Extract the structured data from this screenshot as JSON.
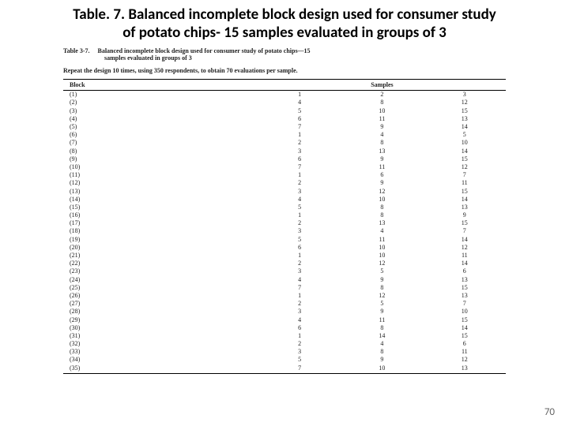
{
  "slide": {
    "title_line1": "Table. 7. Balanced incomplete block design used for consumer study",
    "title_line2": "of potato chips- 15 samples evaluated in groups of 3",
    "title_fontsize": 19,
    "title_color": "#000000",
    "page_number": "70"
  },
  "scan": {
    "caption_lead": "Table 3-7.",
    "caption_rest": "Balanced incomplete block design used for consumer study of potato chips—15",
    "caption_line2": "samples evaluated in groups of 3",
    "repeat_note": "Repeat the design 10 times, using 350 respondents, to obtain 70 evaluations per sample.",
    "header_block": "Block",
    "header_samples": "Samples"
  },
  "table": {
    "type": "table",
    "background_color": "#ffffff",
    "rule_color": "#000000",
    "font_family": "Times New Roman",
    "font_size_pt": 6,
    "columns": [
      "Block",
      "s1",
      "s2",
      "s3"
    ],
    "rows": [
      [
        "(1)",
        1,
        2,
        3
      ],
      [
        "(2)",
        4,
        8,
        12
      ],
      [
        "(3)",
        5,
        10,
        15
      ],
      [
        "(4)",
        6,
        11,
        13
      ],
      [
        "(5)",
        7,
        9,
        14
      ],
      [
        "(6)",
        1,
        4,
        5
      ],
      [
        "(7)",
        2,
        8,
        10
      ],
      [
        "(8)",
        3,
        13,
        14
      ],
      [
        "(9)",
        6,
        9,
        15
      ],
      [
        "(10)",
        7,
        11,
        12
      ],
      [
        "(11)",
        1,
        6,
        7
      ],
      [
        "(12)",
        2,
        9,
        11
      ],
      [
        "(13)",
        3,
        12,
        15
      ],
      [
        "(14)",
        4,
        10,
        14
      ],
      [
        "(15)",
        5,
        8,
        13
      ],
      [
        "(16)",
        1,
        8,
        9
      ],
      [
        "(17)",
        2,
        13,
        15
      ],
      [
        "(18)",
        3,
        4,
        7
      ],
      [
        "(19)",
        5,
        11,
        14
      ],
      [
        "(20)",
        6,
        10,
        12
      ],
      [
        "(21)",
        1,
        10,
        11
      ],
      [
        "(22)",
        2,
        12,
        14
      ],
      [
        "(23)",
        3,
        5,
        6
      ],
      [
        "(24)",
        4,
        9,
        13
      ],
      [
        "(25)",
        7,
        8,
        15
      ],
      [
        "(26)",
        1,
        12,
        13
      ],
      [
        "(27)",
        2,
        5,
        7
      ],
      [
        "(28)",
        3,
        9,
        10
      ],
      [
        "(29)",
        4,
        11,
        15
      ],
      [
        "(30)",
        6,
        8,
        14
      ],
      [
        "(31)",
        1,
        14,
        15
      ],
      [
        "(32)",
        2,
        4,
        6
      ],
      [
        "(33)",
        3,
        8,
        11
      ],
      [
        "(34)",
        5,
        9,
        12
      ],
      [
        "(35)",
        7,
        10,
        13
      ]
    ]
  }
}
